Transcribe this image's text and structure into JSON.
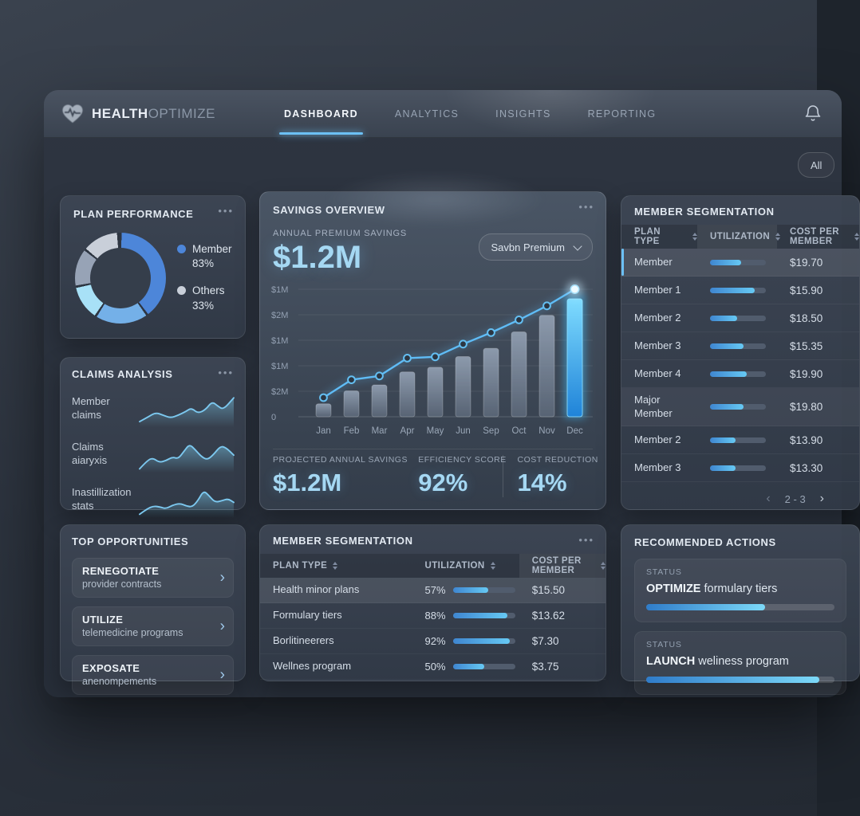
{
  "brand": {
    "bold": "HEALTH",
    "light": "OPTIMIZE"
  },
  "nav": {
    "tabs": [
      {
        "label": "DASHBOARD",
        "active": true
      },
      {
        "label": "ANALYTICS",
        "active": false
      },
      {
        "label": "INSIGHTS",
        "active": false
      },
      {
        "label": "REPORTING",
        "active": false
      }
    ]
  },
  "filter_chip_label": "All",
  "icons": {
    "menu_dots": "•••",
    "chevron_right": "›",
    "page_prev": "‹",
    "page_next": "›"
  },
  "plan_performance": {
    "title": "PLAN PERFORMANCE",
    "donut_segments": [
      {
        "color": "#4d86d9",
        "from": 0,
        "to": 144
      },
      {
        "color": "#74b0e8",
        "from": 144,
        "to": 213
      },
      {
        "color": "#a8e1f7",
        "from": 213,
        "to": 259
      },
      {
        "color": "#97a3b6",
        "from": 259,
        "to": 309
      },
      {
        "color": "#c9cfd9",
        "from": 309,
        "to": 357
      }
    ],
    "legend": [
      {
        "label": "Member",
        "value": "83%",
        "color": "#4d86d9"
      },
      {
        "label": "Others",
        "value": "33%",
        "color": "#c9cfd9"
      }
    ]
  },
  "claims_analysis": {
    "title": "CLAIMS ANALYSIS",
    "rows": [
      {
        "label": "Member claims",
        "points": [
          [
            0,
            34
          ],
          [
            9,
            29
          ],
          [
            17,
            24
          ],
          [
            25,
            27
          ],
          [
            33,
            30
          ],
          [
            41,
            27
          ],
          [
            49,
            23
          ],
          [
            55,
            19
          ],
          [
            62,
            25
          ],
          [
            70,
            21
          ],
          [
            77,
            12
          ],
          [
            83,
            17
          ],
          [
            89,
            21
          ],
          [
            100,
            8
          ]
        ]
      },
      {
        "label": "Claims aiaryxis",
        "points": [
          [
            0,
            36
          ],
          [
            8,
            27
          ],
          [
            14,
            24
          ],
          [
            21,
            29
          ],
          [
            28,
            27
          ],
          [
            35,
            23
          ],
          [
            41,
            25
          ],
          [
            47,
            17
          ],
          [
            53,
            9
          ],
          [
            59,
            15
          ],
          [
            66,
            23
          ],
          [
            72,
            26
          ],
          [
            78,
            21
          ],
          [
            86,
            11
          ],
          [
            92,
            13
          ],
          [
            100,
            21
          ]
        ]
      },
      {
        "label": "Inastillization stats",
        "points": [
          [
            0,
            36
          ],
          [
            8,
            30
          ],
          [
            15,
            27
          ],
          [
            22,
            28
          ],
          [
            28,
            30
          ],
          [
            35,
            26
          ],
          [
            43,
            24
          ],
          [
            50,
            27
          ],
          [
            56,
            28
          ],
          [
            62,
            21
          ],
          [
            68,
            10
          ],
          [
            74,
            16
          ],
          [
            80,
            23
          ],
          [
            88,
            21
          ],
          [
            94,
            19
          ],
          [
            100,
            23
          ]
        ]
      }
    ]
  },
  "top_opportunities": {
    "title": "TOP OPPORTUNITIES",
    "items": [
      {
        "action": "RENEGOTIATE",
        "detail": "provider contracts"
      },
      {
        "action": "UTILIZE",
        "detail": "telemedicine programs"
      },
      {
        "action": "EXPOSATE",
        "detail": "anenompements"
      }
    ]
  },
  "savings_overview": {
    "title": "SAVINGS OVERVIEW",
    "metric_label": "ANNUAL PREMIUM SAVINGS",
    "metric_value": "$1.2M",
    "dropdown_value": "Savbn Premium",
    "stats": [
      {
        "label": "PROJECTED ANNUAL SAVINGS",
        "value": "$1.2M"
      },
      {
        "label": "EFFICIENCY SCORE",
        "value": "92%"
      },
      {
        "label": "COST REDUCTION",
        "value": "14%"
      }
    ]
  },
  "chart_data": {
    "type": "bar+line",
    "title": "ANNUAL PREMIUM SAVINGS",
    "categories": [
      "Jan",
      "Feb",
      "Mar",
      "Apr",
      "May",
      "Jun",
      "Sep",
      "Oct",
      "Nov",
      "Dec"
    ],
    "series": [
      {
        "name": "monthly-savings-bars",
        "type": "bar",
        "values_rel": [
          0.11,
          0.22,
          0.27,
          0.38,
          0.42,
          0.51,
          0.58,
          0.72,
          0.86,
          1.0
        ]
      },
      {
        "name": "savings-trend-line",
        "type": "line",
        "values_rel": [
          0.15,
          0.29,
          0.32,
          0.46,
          0.47,
          0.57,
          0.66,
          0.76,
          0.87,
          1.0
        ]
      }
    ],
    "y_tick_labels_top_to_bottom": [
      "$1M",
      "$2M",
      "$1M",
      "$1M",
      "$2M",
      "0"
    ],
    "highlight_category": "Dec",
    "grid": true,
    "legend": false
  },
  "member_segmentation_center": {
    "title": "MEMBER SEGMENTATION",
    "columns": [
      "PLAN TYPE",
      "UTILIZATION",
      "COST PER MEMBER"
    ],
    "highlight_column": 2,
    "rows": [
      {
        "plan": "Health minor plans",
        "utilization_pct": "57%",
        "utilization_fill": 57,
        "cost": "$15.50",
        "highlight": true
      },
      {
        "plan": "Formulary tiers",
        "utilization_pct": "88%",
        "utilization_fill": 88,
        "cost": "$13.62",
        "highlight": false
      },
      {
        "plan": "Borlitineerers",
        "utilization_pct": "92%",
        "utilization_fill": 92,
        "cost": "$7.30",
        "highlight": false
      },
      {
        "plan": "Wellnes program",
        "utilization_pct": "50%",
        "utilization_fill": 50,
        "cost": "$3.75",
        "highlight": false
      }
    ]
  },
  "member_segmentation_right": {
    "title": "MEMBER SEGMENTATION",
    "columns": [
      "PLAN TYPE",
      "UTILIZATION",
      "COST PER MEMBER"
    ],
    "highlight_column": 1,
    "rows": [
      {
        "plan": "Member",
        "fill": 55,
        "cost": "$19.70",
        "highlight": true,
        "tall": false
      },
      {
        "plan": "Member 1",
        "fill": 80,
        "cost": "$15.90",
        "highlight": false,
        "tall": false
      },
      {
        "plan": "Member 2",
        "fill": 48,
        "cost": "$18.50",
        "highlight": false,
        "tall": false
      },
      {
        "plan": "Member 3",
        "fill": 60,
        "cost": "$15.35",
        "highlight": false,
        "tall": false
      },
      {
        "plan": "Member 4",
        "fill": 65,
        "cost": "$19.90",
        "highlight": false,
        "tall": false
      },
      {
        "plan": "Major Member",
        "fill": 60,
        "cost": "$19.80",
        "highlight": false,
        "tall": true
      },
      {
        "plan": "Member 2",
        "fill": 45,
        "cost": "$13.90",
        "highlight": false,
        "tall": false
      },
      {
        "plan": "Member 3",
        "fill": 45,
        "cost": "$13.30",
        "highlight": false,
        "tall": false
      }
    ],
    "pagination_label": "2 - 3"
  },
  "recommended_actions": {
    "title": "RECOMMENDED ACTIONS",
    "items": [
      {
        "status_label": "STATUS",
        "action": "OPTIMIZE",
        "detail": "formulary tiers",
        "progress": 63
      },
      {
        "status_label": "STATUS",
        "action": "LAUNCH",
        "detail": "weliness program",
        "progress": 92
      }
    ]
  },
  "colors": {
    "accent": "#6cc0f4",
    "value_text": "#a5d8f3",
    "bar_normal_top": "#97a5b8",
    "bar_normal_bottom": "#5c6879",
    "bar_highlight_top": "#7fdcff",
    "bar_highlight_bottom": "#1f83d8",
    "line": "#5fbcf6"
  }
}
